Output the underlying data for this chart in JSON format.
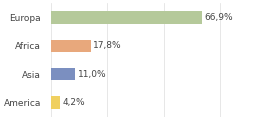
{
  "categories": [
    "Europa",
    "Africa",
    "Asia",
    "America"
  ],
  "values": [
    66.9,
    17.8,
    11.0,
    4.2
  ],
  "labels": [
    "66,9%",
    "17,8%",
    "11,0%",
    "4,2%"
  ],
  "bar_colors": [
    "#b5c99a",
    "#e8a87c",
    "#7b8fc0",
    "#f0d060"
  ],
  "background_color": "#ffffff",
  "xlim": [
    0,
    100
  ],
  "label_fontsize": 6.5,
  "category_fontsize": 6.5,
  "bar_height": 0.45
}
